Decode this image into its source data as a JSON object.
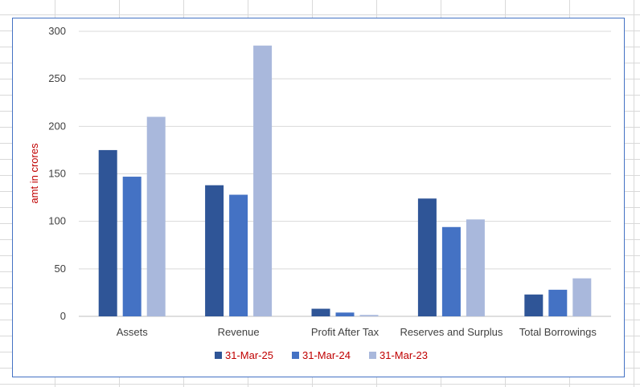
{
  "chart_data": {
    "type": "bar",
    "title": "",
    "xlabel": "",
    "ylabel": "amt in crores",
    "ylim": [
      0,
      300
    ],
    "yticks": [
      0,
      50,
      100,
      150,
      200,
      250,
      300
    ],
    "categories": [
      "Assets",
      "Revenue",
      "Profit After Tax",
      "Reserves and Surplus",
      "Total Borrowings"
    ],
    "series": [
      {
        "name": "31-Mar-25",
        "color": "#2f5597",
        "values": [
          175,
          138,
          8,
          124,
          23
        ]
      },
      {
        "name": "31-Mar-24",
        "color": "#4472c4",
        "values": [
          147,
          128,
          4,
          94,
          28
        ]
      },
      {
        "name": "31-Mar-23",
        "color": "#a9b8dc",
        "values": [
          210,
          285,
          1.5,
          102,
          40
        ]
      }
    ],
    "grid": true,
    "legend_position": "bottom",
    "label_color": "#c00000",
    "legend_text_color": "#c00000"
  }
}
